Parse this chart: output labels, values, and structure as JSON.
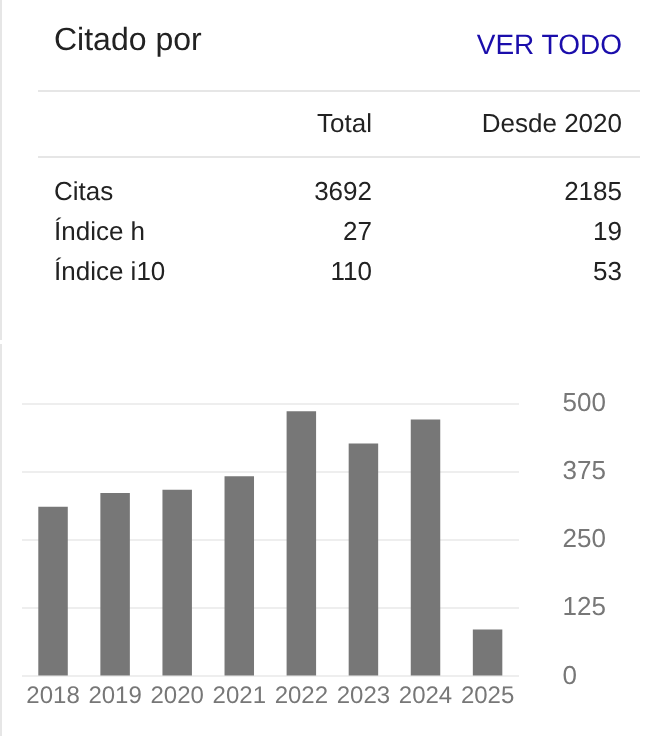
{
  "chart_data": [
    {
      "type": "other",
      "title": "Citado por",
      "annotations": [
        "VER TODO",
        "Total",
        "Desde 2020",
        "Citas",
        "3692",
        "2185",
        "Índice h",
        "27",
        "19",
        "Índice i10",
        "110",
        "53"
      ]
    },
    {
      "type": "bar",
      "categories": [
        "2018",
        "2019",
        "2020",
        "2021",
        "2022",
        "2023",
        "2024",
        "2025"
      ],
      "values": [
        311,
        336,
        342,
        367,
        486,
        427,
        471,
        86
      ],
      "color": "#777777",
      "ylim": [
        0,
        500
      ],
      "yticks": [
        0,
        125,
        250,
        375,
        500
      ],
      "grid": "y",
      "legend": false
    }
  ]
}
